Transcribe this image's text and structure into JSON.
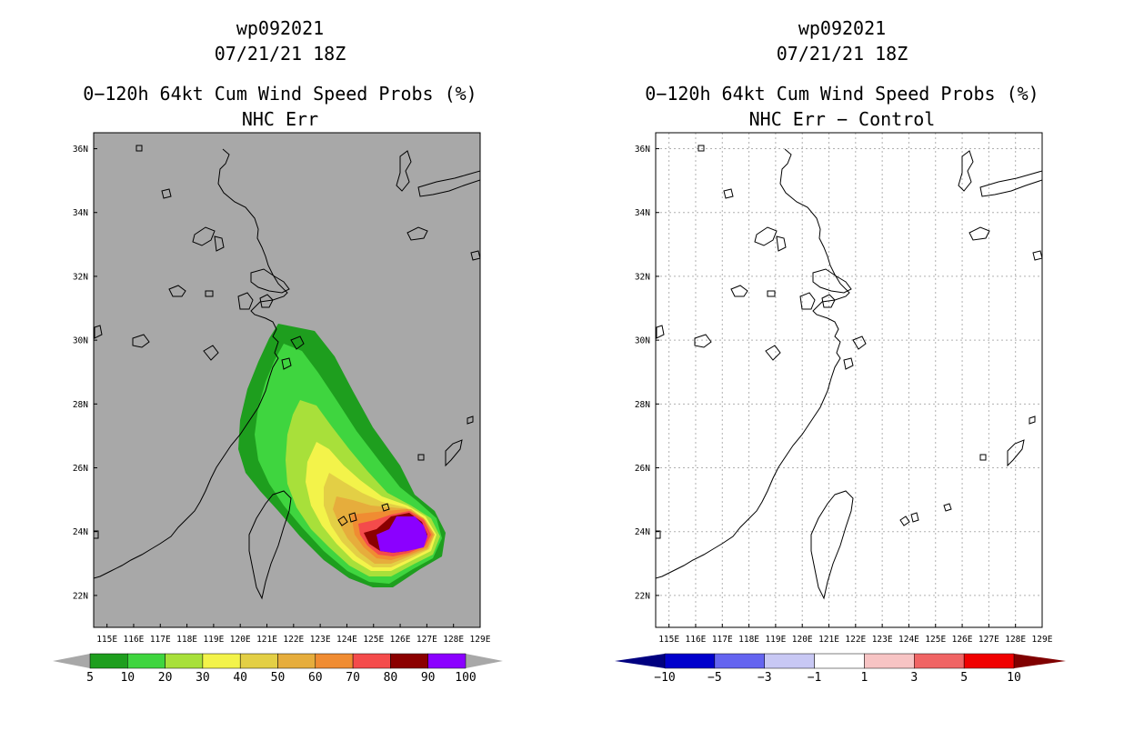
{
  "colors": {
    "land_sea_bg": "#a8a8a8",
    "coast": "#000000",
    "grid": "#b0b0b0",
    "prob_5": "#1e9e1e",
    "prob_10": "#3fd53f",
    "prob_20": "#a8e03a",
    "prob_30": "#f3f34a",
    "prob_40": "#e3cf45",
    "prob_50": "#e6ad3c",
    "prob_60": "#f08c32",
    "prob_70": "#f44b4b",
    "prob_80": "#8b0000",
    "prob_90": "#8b00ff"
  },
  "left_panel": {
    "storm_id": "wp092021",
    "datetime": "07/21/21 18Z",
    "product": "0−120h 64kt Cum Wind Speed Probs (%)",
    "subtitle": "NHC Err",
    "colorbar": {
      "labels": [
        "5",
        "10",
        "20",
        "30",
        "40",
        "50",
        "60",
        "70",
        "80",
        "90",
        "100"
      ],
      "colors": [
        "#1e9e1e",
        "#3fd53f",
        "#a8e03a",
        "#f3f34a",
        "#e3cf45",
        "#e6ad3c",
        "#f08c32",
        "#f44b4b",
        "#8b0000",
        "#8b00ff"
      ],
      "under_color": "#a8a8a8",
      "over_color": "#a8a8a8"
    }
  },
  "right_panel": {
    "storm_id": "wp092021",
    "datetime": "07/21/21 18Z",
    "product": "0−120h 64kt Cum Wind Speed Probs (%)",
    "subtitle": "NHC Err − Control",
    "colorbar": {
      "labels": [
        "−10",
        "−5",
        "−3",
        "−1",
        "1",
        "3",
        "5",
        "10"
      ],
      "colors": [
        "#0000cc",
        "#6464f0",
        "#c8c8f4",
        "#ffffff",
        "#f7c4c4",
        "#f06464",
        "#f00000"
      ],
      "under_color": "#000080",
      "over_color": "#800000"
    }
  },
  "map": {
    "lon_labels": [
      "115E",
      "116E",
      "117E",
      "118E",
      "119E",
      "120E",
      "121E",
      "122E",
      "123E",
      "124E",
      "125E",
      "126E",
      "127E",
      "128E",
      "129E"
    ],
    "lat_labels": [
      "36N",
      "34N",
      "32N",
      "30N",
      "28N",
      "26N",
      "24N",
      "22N"
    ]
  },
  "chart_data": {
    "type": "heatmap",
    "description_units": "percent probability of 64kt winds, 0-120h cumulative",
    "lon_range": [
      114.5,
      129
    ],
    "lat_range": [
      21,
      36.5
    ],
    "contour_levels": [
      5,
      10,
      20,
      30,
      40,
      50,
      60,
      70,
      80,
      90,
      100
    ],
    "max_region_center": {
      "lon": 126.2,
      "lat": 23.8
    },
    "difference_field": "zero everywhere (NHC Err − Control)"
  }
}
